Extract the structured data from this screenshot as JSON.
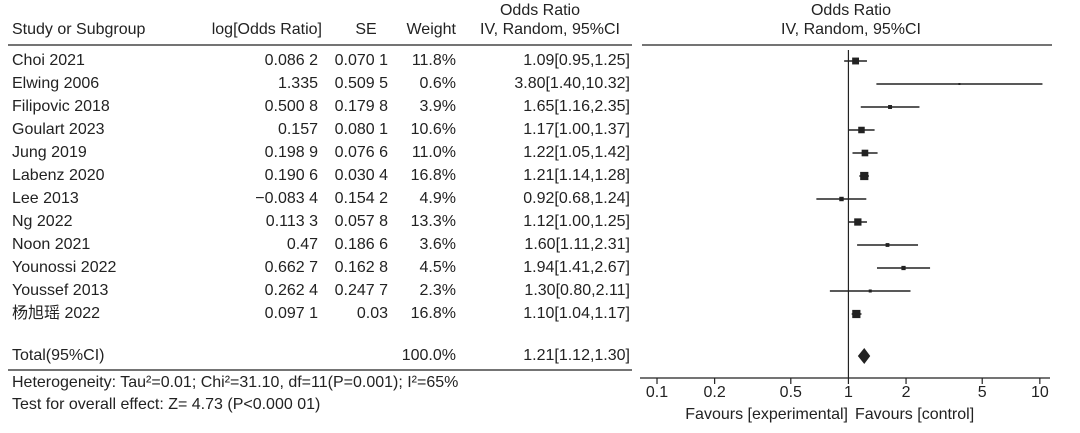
{
  "chart_data": {
    "type": "forest",
    "columns": {
      "study": "Study or Subgroup",
      "log_or": "log[Odds Ratio]",
      "se": "SE",
      "weight": "Weight",
      "or_title": "Odds Ratio",
      "or_method": "IV, Random, 95%CI"
    },
    "title": "Odds Ratio",
    "subtitle": "IV, Random, 95%CI",
    "categories": [
      "Choi 2021",
      "Elwing 2006",
      "Filipovic 2018",
      "Goulart 2023",
      "Jung 2019",
      "Labenz 2020",
      "Lee 2013",
      "Ng 2022",
      "Noon 2021",
      "Younossi 2022",
      "Youssef 2013",
      "杨旭瑶 2022"
    ],
    "log_or": [
      "0.086 2",
      "1.335",
      "0.500 8",
      "0.157",
      "0.198 9",
      "0.190 6",
      "−0.083 4",
      "0.113 3",
      "0.47",
      "0.662 7",
      "0.262 4",
      "0.097 1"
    ],
    "se": [
      "0.070 1",
      "0.509 5",
      "0.179 8",
      "0.080 1",
      "0.076 6",
      "0.030 4",
      "0.154 2",
      "0.057 8",
      "0.186 6",
      "0.162 8",
      "0.247 7",
      "0.03"
    ],
    "weights": [
      11.8,
      0.6,
      3.9,
      10.6,
      11.0,
      16.8,
      4.9,
      13.3,
      3.6,
      4.5,
      2.3,
      16.8
    ],
    "weight_labels": [
      "11.8%",
      "0.6%",
      "3.9%",
      "10.6%",
      "11.0%",
      "16.8%",
      "4.9%",
      "13.3%",
      "3.6%",
      "4.5%",
      "2.3%",
      "16.8%"
    ],
    "values": [
      1.09,
      3.8,
      1.65,
      1.17,
      1.22,
      1.21,
      0.92,
      1.12,
      1.6,
      1.94,
      1.3,
      1.1
    ],
    "lower": [
      0.95,
      1.4,
      1.16,
      1.0,
      1.05,
      1.14,
      0.68,
      1.0,
      1.11,
      1.41,
      0.8,
      1.04
    ],
    "upper": [
      1.25,
      10.32,
      2.35,
      1.37,
      1.42,
      1.28,
      1.24,
      1.25,
      2.31,
      2.67,
      2.11,
      1.17
    ],
    "value_labels": [
      "1.09[0.95,1.25]",
      "3.80[1.40,10.32]",
      "1.65[1.16,2.35]",
      "1.17[1.00,1.37]",
      "1.22[1.05,1.42]",
      "1.21[1.14,1.28]",
      "0.92[0.68,1.24]",
      "1.12[1.00,1.25]",
      "1.60[1.11,2.31]",
      "1.94[1.41,2.67]",
      "1.30[0.80,2.11]",
      "1.10[1.04,1.17]"
    ],
    "total": {
      "label": "Total(95%CI)",
      "weight_label": "100.0%",
      "value": 1.21,
      "lower": 1.12,
      "upper": 1.3,
      "value_label": "1.21[1.12,1.30]"
    },
    "heterogeneity": "Heterogeneity: Tau²=0.01; Chi²=31.10, df=11(P=0.001); I²=65%",
    "overall_effect": "Test for overall effect: Z= 4.73 (P<0.000 01)",
    "xlabel_left": "Favours [experimental]",
    "xlabel_right": "Favours [control]",
    "xscale": "log",
    "xlim": [
      0.0815,
      11.3
    ],
    "xticks": [
      0.1,
      0.2,
      0.5,
      1,
      2,
      5,
      10
    ],
    "reference_line": 1,
    "color": "#222222"
  }
}
